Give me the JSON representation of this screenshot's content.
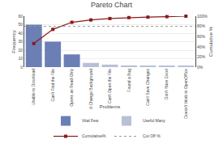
{
  "chart_data": {
    "type": "bar",
    "title": "Pareto Chart",
    "xlabel": "Problems",
    "ylabel": "Frequency",
    "y2label": "Cumulative %",
    "categories": [
      "Unable to Download",
      "Can't Find the File",
      "Opens as Read-Only",
      "Can't Change Background",
      "Can't Open the File",
      "Found a Bug",
      "Can't Save Changes",
      "Don't Have Excel",
      "Doesn't Work in OpenOffice"
    ],
    "series": [
      {
        "name": "Vital Few",
        "type": "bar",
        "color": "#6b7fb5",
        "values": [
          50,
          30,
          15,
          null,
          null,
          null,
          null,
          null,
          null
        ]
      },
      {
        "name": "Useful Many",
        "type": "bar",
        "color": "#b8c0d8",
        "values": [
          null,
          null,
          null,
          5,
          3,
          2,
          1,
          1,
          1
        ]
      },
      {
        "name": "Cumulative%",
        "type": "line",
        "axis": "y2",
        "color": "#8b1a1a",
        "marker": "square",
        "line_style": "solid",
        "values": [
          46.3,
          74.1,
          88.0,
          92.6,
          95.4,
          97.2,
          98.1,
          99.1,
          100.0
        ]
      },
      {
        "name": "Cut Off %",
        "type": "hline",
        "axis": "y2",
        "color": "#999999",
        "line_style": "dotted",
        "value": 80
      }
    ],
    "ylim": [
      0,
      60
    ],
    "yticks": [
      0,
      10,
      20,
      30,
      40,
      50,
      60
    ],
    "y2lim": [
      0,
      100
    ],
    "y2ticks": [
      {
        "value": 0,
        "label": "0%"
      },
      {
        "value": 20,
        "label": "20%"
      },
      {
        "value": 40,
        "label": "40%"
      },
      {
        "value": 60,
        "label": "60%"
      },
      {
        "value": 80,
        "label": "80%"
      },
      {
        "value": 100,
        "label": "100%"
      }
    ],
    "grid": true,
    "legend": "bottom"
  }
}
